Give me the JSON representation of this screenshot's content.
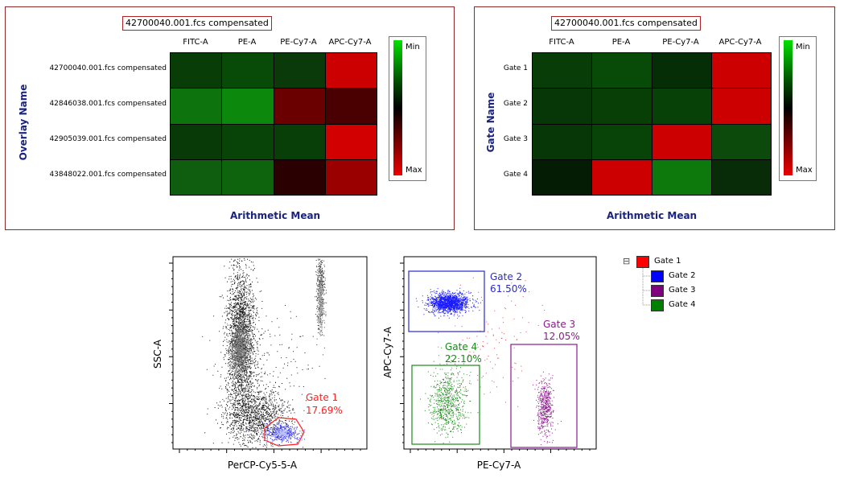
{
  "heatmap1": {
    "tag": "42700040.001.fcs compensated",
    "columns": [
      "FITC-A",
      "PE-A",
      "PE-Cy7-A",
      "APC-Cy7-A"
    ],
    "rows": [
      "42700040.001.fcs compensated",
      "42846038.001.fcs compensated",
      "42905039.001.fcs compensated",
      "43848022.001.fcs compensated"
    ],
    "y_title": "Overlay Name",
    "x_title": "Arithmetic Mean",
    "colors": [
      [
        "#083d08",
        "#084a08",
        "#0a3a0a",
        "#cc0000"
      ],
      [
        "#0d740d",
        "#0c880c",
        "#6b0000",
        "#4a0000"
      ],
      [
        "#083a08",
        "#084308",
        "#083e08",
        "#d30000"
      ],
      [
        "#0f5e0f",
        "#0d640d",
        "#2a0000",
        "#9a0000"
      ]
    ],
    "legend_min": "Min",
    "legend_max": "Max"
  },
  "heatmap2": {
    "tag": "42700040.001.fcs compensated",
    "columns": [
      "FITC-A",
      "PE-A",
      "PE-Cy7-A",
      "APC-Cy7-A"
    ],
    "rows": [
      "Gate 1",
      "Gate 2",
      "Gate 3",
      "Gate 4"
    ],
    "y_title": "Gate Name",
    "x_title": "Arithmetic Mean",
    "colors": [
      [
        "#083d08",
        "#084b08",
        "#062e06",
        "#cc0000"
      ],
      [
        "#073607",
        "#073f07",
        "#084108",
        "#cc0000"
      ],
      [
        "#073607",
        "#084408",
        "#cc0000",
        "#0b4a0b"
      ],
      [
        "#031c03",
        "#cc0000",
        "#0d790d",
        "#072c07"
      ]
    ],
    "legend_min": "Min",
    "legend_max": "Max"
  },
  "scatter1": {
    "x_label": "PerCP-Cy5-5-A",
    "y_label": "SSC-A",
    "gate": {
      "name": "Gate 1",
      "pct": "17.69%",
      "color": "#ff2020"
    }
  },
  "scatter2": {
    "x_label": "PE-Cy7-A",
    "y_label": "APC-Cy7-A",
    "gates": [
      {
        "name": "Gate 2",
        "pct": "61.50%",
        "color": "#2a2ad0"
      },
      {
        "name": "Gate 3",
        "pct": "12.05%",
        "color": "#8b1a8b"
      },
      {
        "name": "Gate 4",
        "pct": "22.10%",
        "color": "#1a8a1a"
      }
    ]
  },
  "tree": {
    "items": [
      {
        "label": "Gate 1",
        "color": "#ff0000"
      },
      {
        "label": "Gate 2",
        "color": "#0000ff"
      },
      {
        "label": "Gate 3",
        "color": "#800080"
      },
      {
        "label": "Gate 4",
        "color": "#008000"
      }
    ],
    "collapse_glyph": "⊟"
  },
  "chart_data": [
    {
      "type": "heatmap",
      "title": "42700040.001.fcs compensated",
      "xlabel": "Arithmetic Mean",
      "ylabel": "Overlay Name",
      "x_categories": [
        "FITC-A",
        "PE-A",
        "PE-Cy7-A",
        "APC-Cy7-A"
      ],
      "y_categories": [
        "42700040.001.fcs compensated",
        "42846038.001.fcs compensated",
        "42905039.001.fcs compensated",
        "43848022.001.fcs compensated"
      ],
      "scale": [
        "Min",
        "Max"
      ]
    },
    {
      "type": "heatmap",
      "title": "42700040.001.fcs compensated",
      "xlabel": "Arithmetic Mean",
      "ylabel": "Gate Name",
      "x_categories": [
        "FITC-A",
        "PE-A",
        "PE-Cy7-A",
        "APC-Cy7-A"
      ],
      "y_categories": [
        "Gate 1",
        "Gate 2",
        "Gate 3",
        "Gate 4"
      ],
      "scale": [
        "Min",
        "Max"
      ]
    },
    {
      "type": "scatter",
      "xlabel": "PerCP-Cy5-5-A",
      "ylabel": "SSC-A",
      "gates": [
        {
          "name": "Gate 1",
          "percent": 17.69
        }
      ]
    },
    {
      "type": "scatter",
      "xlabel": "PE-Cy7-A",
      "ylabel": "APC-Cy7-A",
      "gates": [
        {
          "name": "Gate 2",
          "percent": 61.5
        },
        {
          "name": "Gate 3",
          "percent": 12.05
        },
        {
          "name": "Gate 4",
          "percent": 22.1
        }
      ]
    }
  ]
}
